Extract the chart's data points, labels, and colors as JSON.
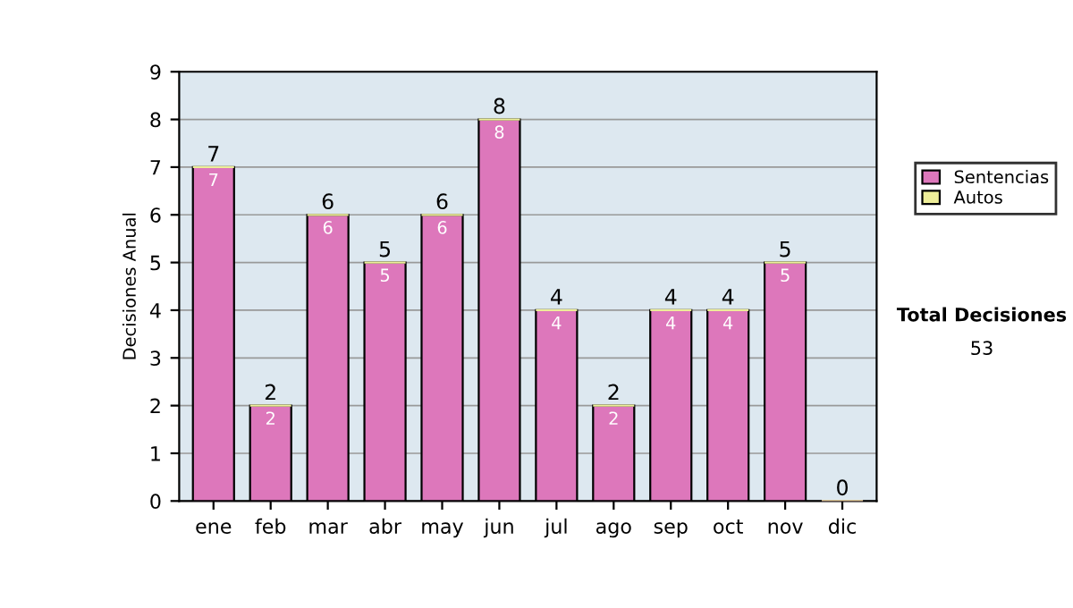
{
  "chart_data": {
    "type": "bar",
    "ylabel": "Decisiones Anual",
    "categories": [
      "ene",
      "feb",
      "mar",
      "abr",
      "may",
      "jun",
      "jul",
      "ago",
      "sep",
      "oct",
      "nov",
      "dic"
    ],
    "series": [
      {
        "name": "Sentencias",
        "color": "#dd77bb",
        "values": [
          7,
          2,
          6,
          5,
          6,
          8,
          4,
          2,
          4,
          4,
          5,
          0
        ],
        "value_labels": [
          "7",
          "2",
          "6",
          "5",
          "6",
          "8",
          "4",
          "2",
          "4",
          "4",
          "5",
          null
        ]
      },
      {
        "name": "Autos",
        "color": "#eeee99",
        "values": [
          0,
          0,
          0,
          0,
          0,
          0,
          0,
          0,
          0,
          0,
          0,
          0
        ]
      }
    ],
    "stacked": true,
    "totals": [
      "7",
      "2",
      "6",
      "5",
      "6",
      "8",
      "4",
      "2",
      "4",
      "4",
      "5",
      "0"
    ],
    "ylim": [
      0,
      9
    ],
    "yticks": [
      0,
      1,
      2,
      3,
      4,
      5,
      6,
      7,
      8,
      9
    ],
    "grid": "y",
    "legend": "right",
    "annotations": [
      "Total Decisiones",
      "53"
    ]
  }
}
